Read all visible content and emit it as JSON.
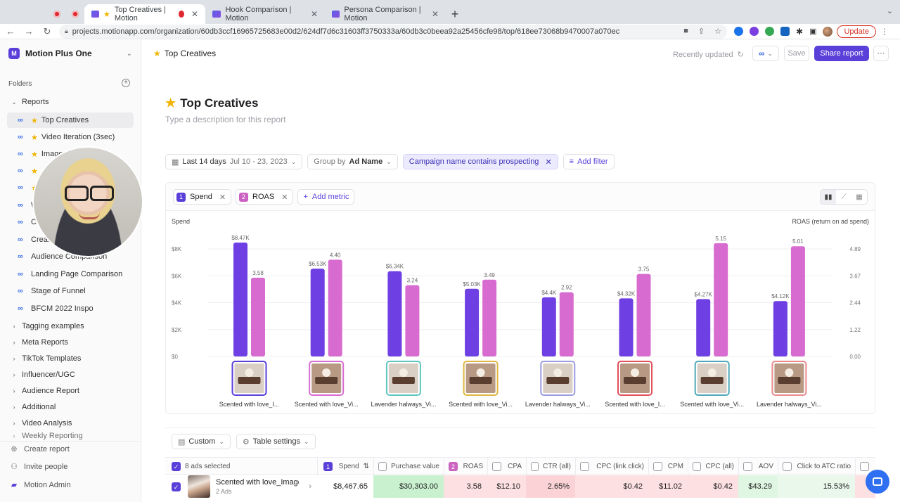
{
  "browser": {
    "tabs": [
      {
        "label": "Top Creatives | Motion",
        "active": true
      },
      {
        "label": "Hook Comparison | Motion",
        "active": false
      },
      {
        "label": "Persona Comparison | Motion",
        "active": false
      }
    ],
    "url": "projects.motionapp.com/organization/60db3ccf16965725683e00d2/624df7d6c31603ff3750333a/60db3c0beea92a25456cfe98/top/618ee73068b9470007a070ec",
    "update_label": "Update"
  },
  "sidebar": {
    "workspace": "Motion Plus One",
    "logo_letter": "M",
    "folders_label": "Folders",
    "reports_label": "Reports",
    "report_items": [
      {
        "label": "Top Creatives",
        "star": true,
        "active": true
      },
      {
        "label": "Video Iteration (3sec)",
        "star": true
      },
      {
        "label": "Image",
        "star": true
      },
      {
        "label": "",
        "star": true
      },
      {
        "label": "",
        "star": true
      },
      {
        "label": "W"
      },
      {
        "label": "Co"
      },
      {
        "label": "Creat"
      },
      {
        "label": "Audience Comparison"
      },
      {
        "label": "Landing Page Comparison"
      },
      {
        "label": "Stage of Funnel"
      },
      {
        "label": "BFCM 2022 Inspo"
      }
    ],
    "folders": [
      "Tagging examples",
      "Meta Reports",
      "TikTok Templates",
      "Influencer/UGC",
      "Audience Report",
      "Additional",
      "Video Analysis",
      "Weekly Reporting"
    ],
    "bottom": {
      "create": "Create report",
      "invite": "Invite people",
      "admin": "Motion Admin"
    }
  },
  "header": {
    "breadcrumb": "Top Creatives",
    "recently_updated": "Recently updated",
    "save": "Save",
    "share": "Share report",
    "more": "···"
  },
  "report": {
    "title": "Top Creatives",
    "description_placeholder": "Type a description for this report"
  },
  "filters": {
    "date_label": "Last 14 days",
    "date_range": "Jul 10 - 23, 2023",
    "group_prefix": "Group by",
    "group_value": "Ad Name",
    "filter_chip": "Campaign name contains prospecting",
    "add_filter": "Add filter"
  },
  "metrics": {
    "items": [
      {
        "num": "1",
        "label": "Spend"
      },
      {
        "num": "2",
        "label": "ROAS"
      }
    ],
    "add_metric": "Add metric"
  },
  "chart_data": {
    "type": "bar",
    "ylabel_left": "Spend",
    "ylabel_right": "ROAS (return on ad spend)",
    "left_ticks": [
      "$0",
      "$2K",
      "$4K",
      "$6K",
      "$8K"
    ],
    "right_ticks": [
      "0.00",
      "1.22",
      "2.44",
      "3.67",
      "4.89"
    ],
    "left_range": [
      0,
      8000
    ],
    "right_range": [
      0,
      4.89
    ],
    "categories": [
      "Scented with love_I...",
      "Scented with love_Vi...",
      "Lavender halways_Vi...",
      "Scented with love_Vi...",
      "Lavender halways_Vi...",
      "Scented with love_I...",
      "Scented with love_Vi...",
      "Lavender halways_Vi..."
    ],
    "series": [
      {
        "name": "Spend",
        "axis": "left",
        "color": "#6e3fe3",
        "values": [
          8470,
          6530,
          6340,
          5030,
          4400,
          4320,
          4270,
          4120
        ],
        "labels": [
          "$8.47K",
          "$6.53K",
          "$6.34K",
          "$5.03K",
          "$4.4K",
          "$4.32K",
          "$4.27K",
          "$4.12K"
        ]
      },
      {
        "name": "ROAS",
        "axis": "right",
        "color": "#d86bd0",
        "values": [
          3.58,
          4.4,
          3.24,
          3.49,
          2.92,
          3.75,
          5.15,
          5.01
        ],
        "labels": [
          "3.58",
          "4.40",
          "3.24",
          "3.49",
          "2.92",
          "3.75",
          "5.15",
          "5.01"
        ]
      }
    ],
    "thumb_borders": [
      "#5b3fd9",
      "#d86bd0",
      "#60c5c0",
      "#e0b640",
      "#9b9be0",
      "#e0505a",
      "#4fa9b8",
      "#e88a8a"
    ],
    "grid": true
  },
  "table": {
    "custom_label": "Custom",
    "settings_label": "Table settings",
    "selected_label": "8 ads selected",
    "columns": [
      {
        "label": "Spend",
        "num": "1",
        "checked": true
      },
      {
        "label": "Purchase value"
      },
      {
        "label": "ROAS",
        "num": "2",
        "checked": true
      },
      {
        "label": "CPA"
      },
      {
        "label": "CTR (all)"
      },
      {
        "label": "CPC (link click)"
      },
      {
        "label": "CPM"
      },
      {
        "label": "CPC (all)"
      },
      {
        "label": "AOV"
      },
      {
        "label": "Click to ATC ratio"
      }
    ],
    "row": {
      "name": "Scented with love_Image",
      "sub": "2 Ads",
      "values": [
        "$8,467.65",
        "$30,303.00",
        "3.58",
        "$12.10",
        "2.65%",
        "$0.42",
        "$11.02",
        "$0.42",
        "$43.29",
        "15.53%"
      ]
    }
  }
}
